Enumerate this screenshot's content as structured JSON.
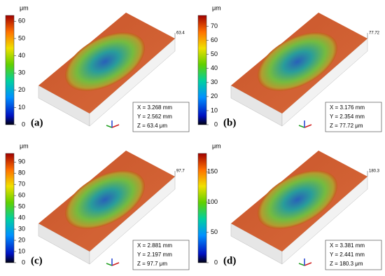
{
  "panels": [
    {
      "label": "(a)",
      "unit": "μm",
      "colorbar_ticks": [
        0,
        10,
        20,
        30,
        40,
        50,
        60
      ],
      "corner_value": 63.4,
      "info": [
        "X = 3.268 mm",
        "Y = 2.562 mm",
        "Z = 63.4 μm"
      ]
    },
    {
      "label": "(b)",
      "unit": "μm",
      "colorbar_ticks": [
        0,
        10,
        20,
        30,
        40,
        50,
        60,
        70
      ],
      "corner_value": 77.72,
      "info": [
        "X = 3.176 mm",
        "Y = 2.354 mm",
        "Z = 77.72 μm"
      ]
    },
    {
      "label": "(c)",
      "unit": "μm",
      "colorbar_ticks": [
        0,
        10,
        20,
        30,
        40,
        50,
        60,
        70,
        80,
        90
      ],
      "corner_value": 97.7,
      "info": [
        "X = 2.881 mm",
        "Y = 2.197 mm",
        "Z = 97.7 μm"
      ]
    },
    {
      "label": "(d)",
      "unit": "μm",
      "colorbar_ticks": [
        0,
        50,
        100,
        150
      ],
      "corner_value": 180.3,
      "info": [
        "X = 3.381 mm",
        "Y = 2.441 mm",
        "Z = 180.3 μm"
      ]
    }
  ]
}
